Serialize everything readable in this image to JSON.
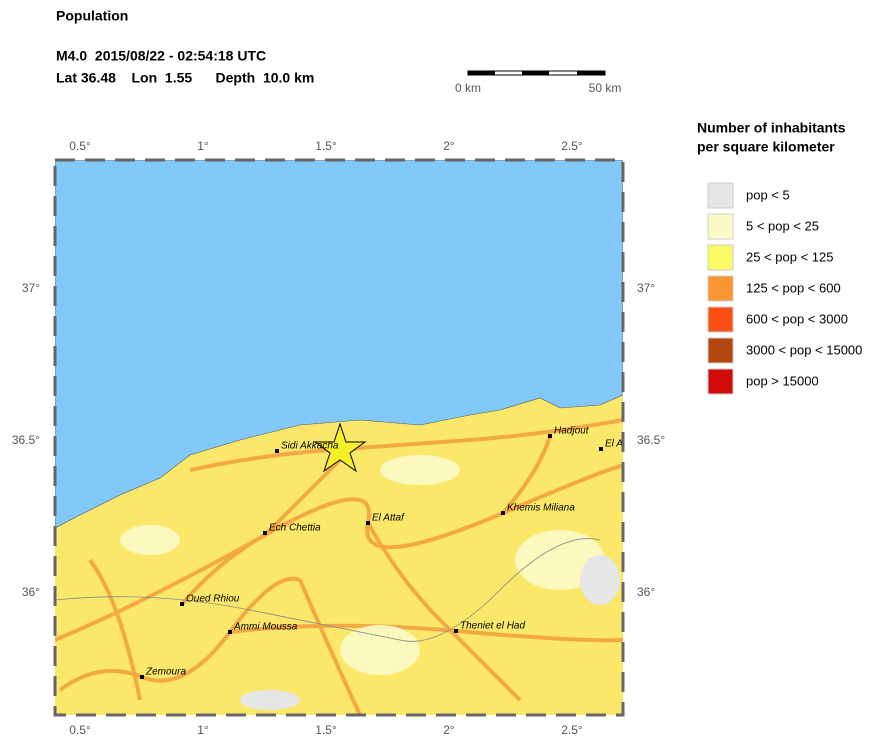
{
  "header": {
    "title": "Population",
    "event": "M4.0  2015/08/22 - 02:54:18 UTC",
    "location": "Lat 36.48    Lon  1.55      Depth  10.0 km"
  },
  "scale_bar": {
    "start": "0 km",
    "end": "50 km"
  },
  "map": {
    "lon_ticks": [
      "0.5°",
      "1°",
      "1.5°",
      "2°",
      "2.5°"
    ],
    "lat_ticks": [
      "36°",
      "36.5°",
      "37°"
    ],
    "cities": [
      "Sidi Akkacha",
      "El Attaf",
      "Hadjout",
      "El A",
      "Khemis Miliana",
      "Ech Chettia",
      "Oued Rhiou",
      "Ammi Moussa",
      "Theniet el Had",
      "Zemoura"
    ]
  },
  "legend": {
    "title_lines": [
      "Number of inhabitants",
      "per square kilometer"
    ],
    "items": [
      {
        "label": "pop < 5",
        "color": "#e6e6e6"
      },
      {
        "label": "5 < pop < 25",
        "color": "#fbfbc8"
      },
      {
        "label": "25 < pop < 125",
        "color": "#fafa64"
      },
      {
        "label": "125 < pop < 600",
        "color": "#fa9632"
      },
      {
        "label": "600 < pop < 3000",
        "color": "#fa5014"
      },
      {
        "label": "3000 < pop < 15000",
        "color": "#b4460f"
      },
      {
        "label": "pop > 15000",
        "color": "#d20a0a"
      }
    ]
  }
}
